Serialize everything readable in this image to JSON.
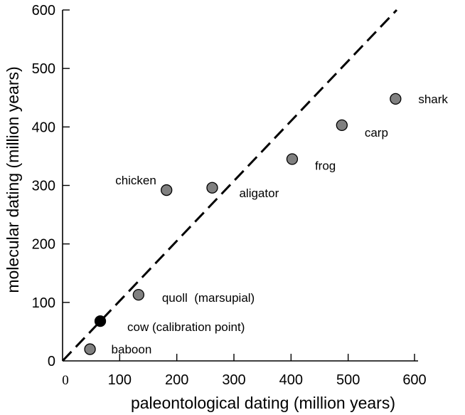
{
  "chart_data": {
    "type": "scatter",
    "xlabel": "paleontological dating (million years)",
    "ylabel": "molecular dating (million years)",
    "xlim": [
      0,
      600
    ],
    "ylim": [
      0,
      600
    ],
    "x_ticks": [
      0,
      100,
      200,
      300,
      400,
      500,
      600
    ],
    "y_ticks": [
      0,
      100,
      200,
      300,
      400,
      500,
      600
    ],
    "x_tick_labels": [
      "0",
      "100",
      "200",
      "300",
      "400",
      "500",
      "600"
    ],
    "y_tick_labels": [
      "0",
      "100",
      "200",
      "300",
      "400",
      "500",
      "600"
    ],
    "grid": false,
    "reference_line": {
      "style": "dashed",
      "from": [
        0,
        0
      ],
      "to": [
        585,
        600
      ]
    },
    "points": [
      {
        "label": "baboon",
        "x": 48,
        "y": 20,
        "color": "#808080"
      },
      {
        "label": "cow (calibration point)",
        "x": 66,
        "y": 68,
        "color": "#000000"
      },
      {
        "label": "quoll  (marsupial)",
        "x": 133,
        "y": 113,
        "color": "#808080"
      },
      {
        "label": "chicken",
        "x": 182,
        "y": 292,
        "color": "#808080"
      },
      {
        "label": "aligator",
        "x": 262,
        "y": 296,
        "color": "#808080"
      },
      {
        "label": "frog",
        "x": 402,
        "y": 345,
        "color": "#808080"
      },
      {
        "label": "carp",
        "x": 489,
        "y": 403,
        "color": "#808080"
      },
      {
        "label": "shark",
        "x": 583,
        "y": 448,
        "color": "#808080"
      }
    ]
  }
}
